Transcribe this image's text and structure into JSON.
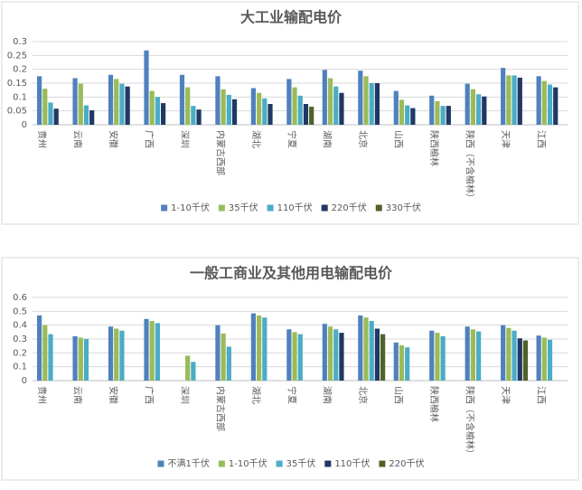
{
  "chart_data": [
    {
      "type": "bar",
      "title": "大工业输配电价",
      "categories": [
        "贵州",
        "云南",
        "安徽",
        "广西",
        "深圳",
        "内蒙古西部",
        "湖北",
        "宁夏",
        "湖南",
        "北京",
        "山西",
        "陕西榆林",
        "陕西（不含榆林）",
        "天津",
        "江西"
      ],
      "series": [
        {
          "name": "1-10千伏",
          "color": "#4f81bd",
          "values": [
            0.175,
            0.168,
            0.18,
            0.268,
            0.18,
            0.175,
            0.132,
            0.165,
            0.198,
            0.195,
            0.122,
            0.105,
            0.148,
            0.205,
            0.175
          ]
        },
        {
          "name": "35千伏",
          "color": "#9bbb59",
          "values": [
            0.13,
            0.148,
            0.165,
            0.122,
            0.135,
            0.128,
            0.115,
            0.135,
            0.168,
            0.175,
            0.09,
            0.085,
            0.128,
            0.178,
            0.158
          ]
        },
        {
          "name": "110千伏",
          "color": "#4bacc6",
          "values": [
            0.08,
            0.07,
            0.148,
            0.1,
            0.068,
            0.108,
            0.095,
            0.105,
            0.138,
            0.15,
            0.07,
            0.068,
            0.11,
            0.178,
            0.145
          ]
        },
        {
          "name": "220千伏",
          "color": "#1f3864",
          "values": [
            0.058,
            0.052,
            0.138,
            0.078,
            0.055,
            0.092,
            0.075,
            0.075,
            0.115,
            0.15,
            0.06,
            0.068,
            0.102,
            0.17,
            0.135
          ]
        },
        {
          "name": "330千伏",
          "color": "#4f6228",
          "values": [
            null,
            null,
            null,
            null,
            null,
            null,
            null,
            0.065,
            null,
            null,
            null,
            null,
            null,
            null,
            null
          ]
        }
      ],
      "ylim": [
        0,
        0.3
      ],
      "yticks": [
        0,
        0.05,
        0.1,
        0.15,
        0.2,
        0.25,
        0.3
      ],
      "grid": true,
      "legend": "bottom"
    },
    {
      "type": "bar",
      "title": "一般工商业及其他用电输配电价",
      "categories": [
        "贵州",
        "云南",
        "安徽",
        "广西",
        "深圳",
        "内蒙古西部",
        "湖北",
        "宁夏",
        "湖南",
        "北京",
        "山西",
        "陕西榆林",
        "陕西（不含榆林）",
        "天津",
        "江西"
      ],
      "series": [
        {
          "name": "不满1千伏",
          "color": "#4f81bd",
          "values": [
            0.47,
            0.32,
            0.39,
            0.445,
            null,
            0.4,
            0.485,
            0.37,
            0.41,
            0.47,
            0.275,
            0.36,
            0.39,
            0.4,
            0.325
          ]
        },
        {
          "name": "1-10千伏",
          "color": "#9bbb59",
          "values": [
            0.4,
            0.31,
            0.375,
            0.43,
            0.18,
            0.34,
            0.47,
            0.35,
            0.39,
            0.455,
            0.255,
            0.345,
            0.37,
            0.38,
            0.31
          ]
        },
        {
          "name": "35千伏",
          "color": "#4bacc6",
          "values": [
            0.335,
            0.3,
            0.36,
            0.415,
            0.135,
            0.245,
            0.455,
            0.335,
            0.37,
            0.43,
            0.24,
            0.32,
            0.355,
            0.36,
            0.295
          ]
        },
        {
          "name": "110千伏",
          "color": "#1f3864",
          "values": [
            null,
            null,
            null,
            null,
            null,
            null,
            null,
            null,
            0.345,
            0.375,
            null,
            null,
            null,
            0.305,
            null
          ]
        },
        {
          "name": "220千伏",
          "color": "#4f6228",
          "values": [
            null,
            null,
            null,
            null,
            null,
            null,
            null,
            null,
            null,
            0.335,
            null,
            null,
            null,
            0.29,
            null
          ]
        }
      ],
      "ylim": [
        0,
        0.6
      ],
      "yticks": [
        0,
        0.1,
        0.2,
        0.3,
        0.4,
        0.5,
        0.6
      ],
      "grid": true,
      "legend": "bottom"
    }
  ]
}
